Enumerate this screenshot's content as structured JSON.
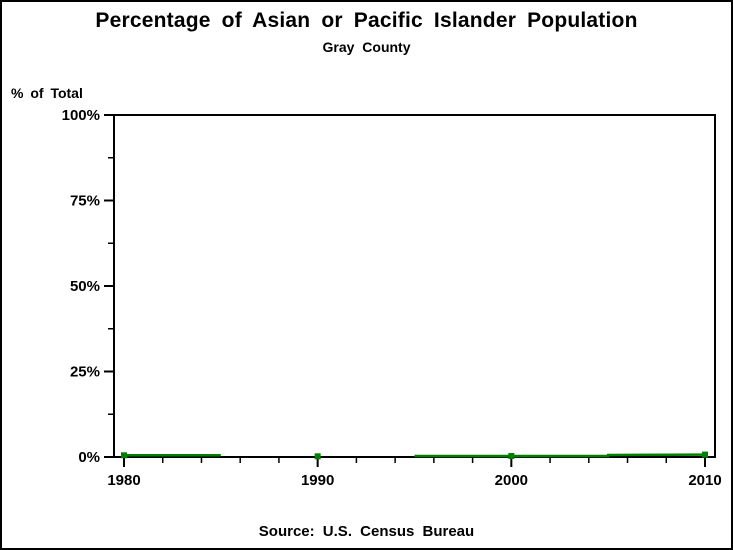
{
  "figure": {
    "background": "#ffffff",
    "border_color": "#000000"
  },
  "chart_data": {
    "type": "line",
    "title": "Percentage of Asian or Pacific Islander Population",
    "subtitle": "Gray County",
    "ylabel": "% of Total",
    "xlabel": "",
    "source_note": "Source: U.S. Census Bureau",
    "xlim": [
      1980,
      2010
    ],
    "ylim": [
      0,
      100
    ],
    "x_ticks_major": [
      1980,
      1990,
      2000,
      2010
    ],
    "x_tick_labels": [
      "1980",
      "1990",
      "2000",
      "2010"
    ],
    "x_minor_tick_step": 2,
    "y_ticks_major": [
      0,
      25,
      50,
      75,
      100
    ],
    "y_tick_labels": [
      "0%",
      "25%",
      "50%",
      "75%",
      "100%"
    ],
    "y_minor_tick_step": 12.5,
    "grid": "off",
    "legend": "none",
    "axis_color": "#000000",
    "series": [
      {
        "name": "Asian or Pacific Islander percent of population",
        "color": "#008000",
        "marker": "filled-square",
        "marker_points": [
          [
            1980,
            0.5
          ],
          [
            1990,
            0.2
          ],
          [
            2000,
            0.3
          ],
          [
            2010,
            0.7
          ]
        ],
        "line_segments": [
          [
            [
              1980,
              0.5
            ],
            [
              1985,
              0.5
            ]
          ],
          [
            [
              1995,
              0.3
            ],
            [
              2000,
              0.3
            ],
            [
              2005,
              0.3
            ],
            [
              2005,
              0.6
            ],
            [
              2010,
              0.7
            ]
          ]
        ]
      }
    ]
  }
}
